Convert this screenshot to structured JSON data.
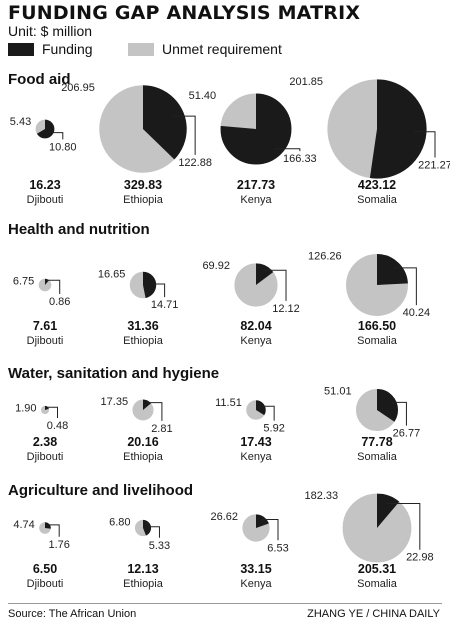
{
  "header": {
    "title": "FUNDING GAP ANALYSIS MATRIX",
    "unit": "Unit: $ million"
  },
  "legend": {
    "funding": "Funding",
    "unmet": "Unmet requirement"
  },
  "colors": {
    "funding": "#1a1a1a",
    "unmet": "#c4c4c4"
  },
  "footer": {
    "source": "Source: The African Union",
    "credit": "ZHANG YE / CHINA DAILY"
  },
  "chart_data": {
    "type": "pie",
    "series": [
      {
        "name": "Funding"
      },
      {
        "name": "Unmet requirement"
      }
    ],
    "sections": [
      {
        "title": "Food aid",
        "pies": [
          {
            "country": "Djibouti",
            "total": "16.23",
            "unmet": "5.43",
            "funding": "10.80"
          },
          {
            "country": "Ethiopia",
            "total": "329.83",
            "unmet": "206.95",
            "funding": "122.88"
          },
          {
            "country": "Kenya",
            "total": "217.73",
            "unmet": "51.40",
            "funding": "166.33"
          },
          {
            "country": "Somalia",
            "total": "423.12",
            "unmet": "201.85",
            "funding": "221.27"
          }
        ]
      },
      {
        "title": "Health and nutrition",
        "pies": [
          {
            "country": "Djibouti",
            "total": "7.61",
            "unmet": "6.75",
            "funding": "0.86"
          },
          {
            "country": "Ethiopia",
            "total": "31.36",
            "unmet": "16.65",
            "funding": "14.71"
          },
          {
            "country": "Kenya",
            "total": "82.04",
            "unmet": "69.92",
            "funding": "12.12"
          },
          {
            "country": "Somalia",
            "total": "166.50",
            "unmet": "126.26",
            "funding": "40.24"
          }
        ]
      },
      {
        "title": "Water, sanitation and hygiene",
        "pies": [
          {
            "country": "Djibouti",
            "total": "2.38",
            "unmet": "1.90",
            "funding": "0.48"
          },
          {
            "country": "Ethiopia",
            "total": "20.16",
            "unmet": "17.35",
            "funding": "2.81"
          },
          {
            "country": "Kenya",
            "total": "17.43",
            "unmet": "11.51",
            "funding": "5.92"
          },
          {
            "country": "Somalia",
            "total": "77.78",
            "unmet": "51.01",
            "funding": "26.77"
          }
        ]
      },
      {
        "title": "Agriculture and livelihood",
        "pies": [
          {
            "country": "Djibouti",
            "total": "6.50",
            "unmet": "4.74",
            "funding": "1.76"
          },
          {
            "country": "Ethiopia",
            "total": "12.13",
            "unmet": "6.80",
            "funding": "5.33"
          },
          {
            "country": "Kenya",
            "total": "33.15",
            "unmet": "26.62",
            "funding": "6.53"
          },
          {
            "country": "Somalia",
            "total": "205.31",
            "unmet": "182.33",
            "funding": "22.98"
          }
        ]
      }
    ]
  }
}
